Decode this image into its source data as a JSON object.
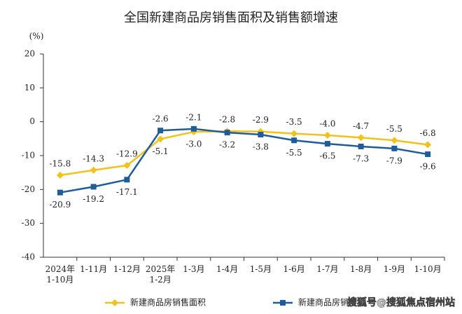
{
  "chart_data": {
    "type": "line",
    "title": "全国新建商品房销售面积及销售额增速",
    "y_unit": "(%)",
    "categories": [
      "2024年\n1-10月",
      "1-11月",
      "1-12月",
      "2025年\n1-2月",
      "1-3月",
      "1-4月",
      "1-5月",
      "1-6月",
      "1-7月",
      "1-8月",
      "1-9月",
      "1-10月"
    ],
    "series": [
      {
        "name": "新建商品房销售面积",
        "color": "#f2c21b",
        "values": [
          -15.8,
          -14.3,
          -12.9,
          -5.1,
          -3.0,
          -2.8,
          -2.9,
          -3.5,
          -4.0,
          -4.7,
          -5.5,
          -6.8
        ],
        "value_labels": [
          "-15.8",
          "-14.3",
          "-12.9",
          "-5.1",
          "-3.0",
          "-2.8",
          "-2.9",
          "-3.5",
          "-4.0",
          "-4.7",
          "-5.5",
          "-6.8"
        ]
      },
      {
        "name": "新建商品房销售额",
        "color": "#1f5c99",
        "values": [
          -20.9,
          -19.2,
          -17.1,
          -2.6,
          -2.1,
          -3.2,
          -3.8,
          -5.5,
          -6.5,
          -7.3,
          -7.9,
          -9.6
        ],
        "value_labels": [
          "-20.9",
          "-19.2",
          "-17.1",
          "-2.6",
          "-2.1",
          "-3.2",
          "-3.8",
          "-5.5",
          "-6.5",
          "-7.3",
          "-7.9",
          "-9.6"
        ]
      }
    ],
    "ylim": [
      -40,
      20
    ],
    "yticks": [
      20,
      10,
      0,
      -10,
      -20,
      -30,
      -40
    ],
    "grid": false,
    "legend": "bottom",
    "watermark": "搜狐号@搜狐焦点宿州站"
  }
}
